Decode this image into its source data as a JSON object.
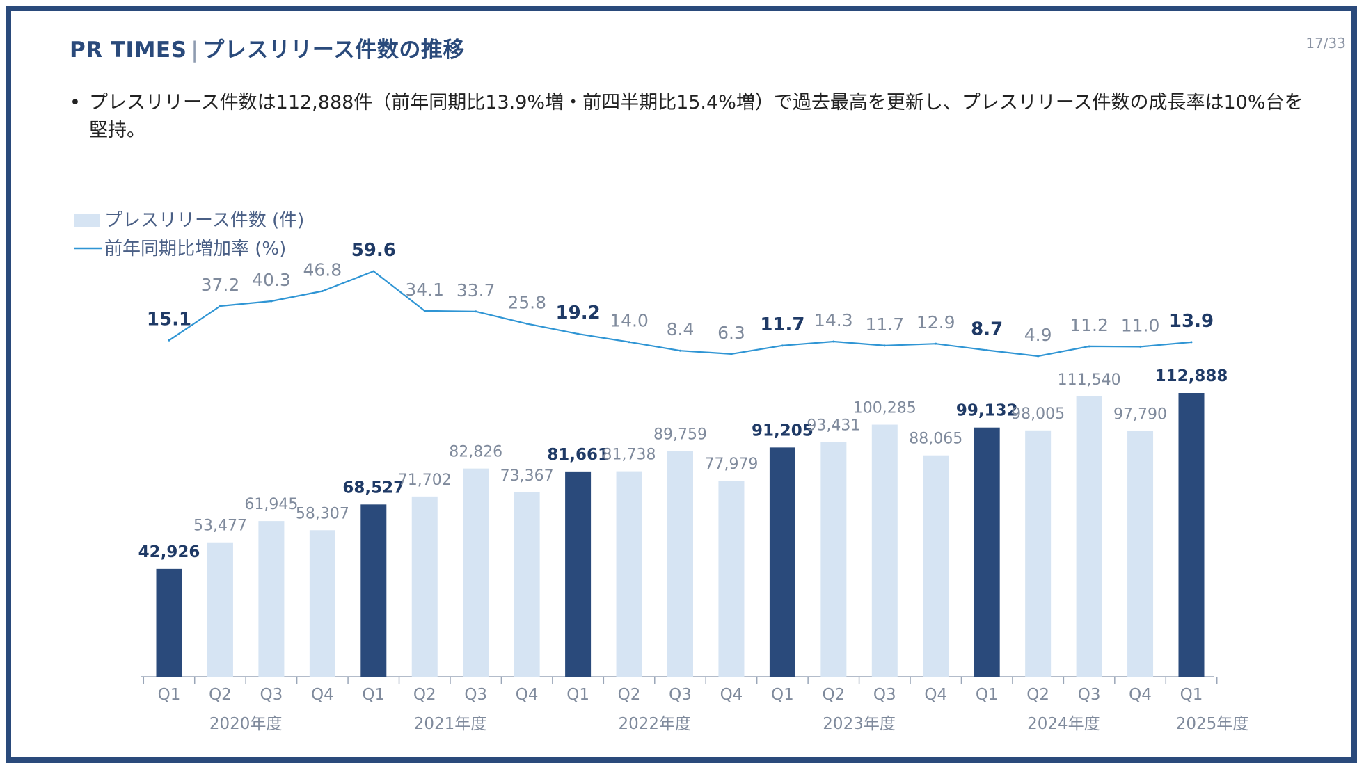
{
  "header": {
    "brand": "PR TIMES",
    "separator": "|",
    "title": "プレスリリース件数の推移",
    "page_number": "17/33"
  },
  "summary": {
    "bullet_mark": "•",
    "text": "プレスリリース件数は112,888件（前年同期比13.9%増・前四半期比15.4%増）で過去最高を更新し、プレスリリース件数の成長率は10%台を堅持。"
  },
  "colors": {
    "bar_highlight": "#2a4a7b",
    "bar_normal": "#d6e4f3",
    "line": "#2f95d4",
    "label_highlight": "#1f3a66",
    "label_normal": "#7f8a9c",
    "axis": "#9aa6b8"
  },
  "chart_data": {
    "type": "bar+line",
    "legend": [
      "プレスリリース件数 (件)",
      "前年同期比増加率 (%)"
    ],
    "quarters": [
      "Q1",
      "Q2",
      "Q3",
      "Q4",
      "Q1",
      "Q2",
      "Q3",
      "Q4",
      "Q1",
      "Q2",
      "Q3",
      "Q4",
      "Q1",
      "Q2",
      "Q3",
      "Q4",
      "Q1",
      "Q2",
      "Q3",
      "Q4",
      "Q1"
    ],
    "fiscal_years": [
      "2020年度",
      "2021年度",
      "2022年度",
      "2023年度",
      "2024年度",
      "2025年度"
    ],
    "bar_series": {
      "name": "プレスリリース件数 (件)",
      "values": [
        42926,
        53477,
        61945,
        58307,
        68527,
        71702,
        82826,
        73367,
        81661,
        81738,
        89759,
        77979,
        91205,
        93431,
        100285,
        88065,
        99132,
        98005,
        111540,
        97790,
        112888
      ],
      "labels": [
        "42,926",
        "53,477",
        "61,945",
        "58,307",
        "68,527",
        "71,702",
        "82,826",
        "73,367",
        "81,661",
        "81,738",
        "89,759",
        "77,979",
        "91,205",
        "93,431",
        "100,285",
        "88,065",
        "99,132",
        "98,005",
        "111,540",
        "97,790",
        "112,888"
      ]
    },
    "line_series": {
      "name": "前年同期比増加率 (%)",
      "values": [
        15.1,
        37.2,
        40.3,
        46.8,
        59.6,
        34.1,
        33.7,
        25.8,
        19.2,
        14.0,
        8.4,
        6.3,
        11.7,
        14.3,
        11.7,
        12.9,
        8.7,
        4.9,
        11.2,
        11.0,
        13.9
      ],
      "labels": [
        "15.1",
        "37.2",
        "40.3",
        "46.8",
        "59.6",
        "34.1",
        "33.7",
        "25.8",
        "19.2",
        "14.0",
        "8.4",
        "6.3",
        "11.7",
        "14.3",
        "11.7",
        "12.9",
        "8.7",
        "4.9",
        "11.2",
        "11.0",
        "13.9"
      ]
    },
    "highlight": [
      true,
      false,
      false,
      false,
      true,
      false,
      false,
      false,
      true,
      false,
      false,
      false,
      true,
      false,
      false,
      false,
      true,
      false,
      false,
      false,
      true
    ]
  }
}
